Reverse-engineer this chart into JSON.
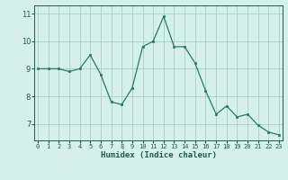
{
  "x": [
    0,
    1,
    2,
    3,
    4,
    5,
    6,
    7,
    8,
    9,
    10,
    11,
    12,
    13,
    14,
    15,
    16,
    17,
    18,
    19,
    20,
    21,
    22,
    23
  ],
  "y": [
    9.0,
    9.0,
    9.0,
    8.9,
    9.0,
    9.5,
    8.8,
    7.8,
    7.7,
    8.3,
    9.8,
    10.0,
    10.9,
    9.8,
    9.8,
    9.2,
    8.2,
    7.35,
    7.65,
    7.25,
    7.35,
    6.95,
    6.7,
    6.6
  ],
  "line_color": "#2a7a65",
  "marker_color": "#2a7a65",
  "bg_color": "#d4f0e8",
  "grid_color": "#a8cfc4",
  "xlabel": "Humidex (Indice chaleur)",
  "xlabel_color": "#1e5c4a",
  "tick_color": "#1e5c4a",
  "ylim": [
    6.4,
    11.3
  ],
  "yticks": [
    7,
    8,
    9,
    10,
    11
  ],
  "xticks": [
    0,
    1,
    2,
    3,
    4,
    5,
    6,
    7,
    8,
    9,
    10,
    11,
    12,
    13,
    14,
    15,
    16,
    17,
    18,
    19,
    20,
    21,
    22,
    23
  ],
  "xtick_labels": [
    "0",
    "1",
    "2",
    "3",
    "4",
    "5",
    "6",
    "7",
    "8",
    "9",
    "10",
    "11",
    "12",
    "13",
    "14",
    "15",
    "16",
    "17",
    "18",
    "19",
    "20",
    "21",
    "22",
    "23"
  ],
  "xlim": [
    -0.3,
    23.3
  ]
}
